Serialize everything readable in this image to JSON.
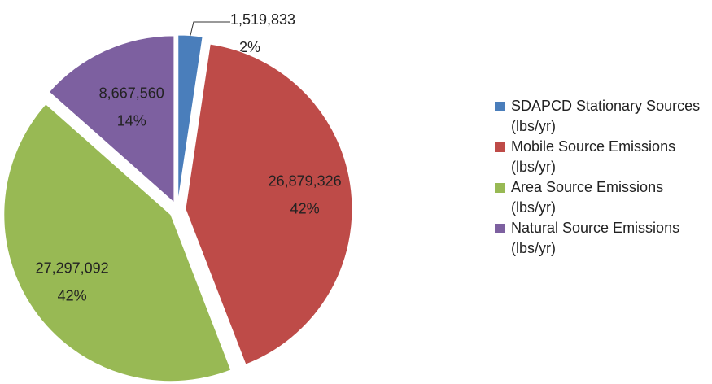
{
  "chart_data": {
    "type": "pie",
    "categories": [
      "SDAPCD Stationary Sources (lbs/yr)",
      "Mobile Source Emissions (lbs/yr)",
      "Area Source Emissions (lbs/yr)",
      "Natural Source Emissions (lbs/yr)"
    ],
    "values": [
      1519833,
      26879326,
      27297092,
      8667560
    ],
    "value_labels": [
      "1,519,833",
      "26,879,326",
      "27,297,092",
      "8,667,560"
    ],
    "percents": [
      2,
      42,
      42,
      14
    ],
    "percent_labels": [
      "2%",
      "42%",
      "42%",
      "14%"
    ],
    "colors": [
      "#4a7ebb",
      "#be4b48",
      "#98b954",
      "#7d60a0"
    ],
    "legend": "right"
  }
}
